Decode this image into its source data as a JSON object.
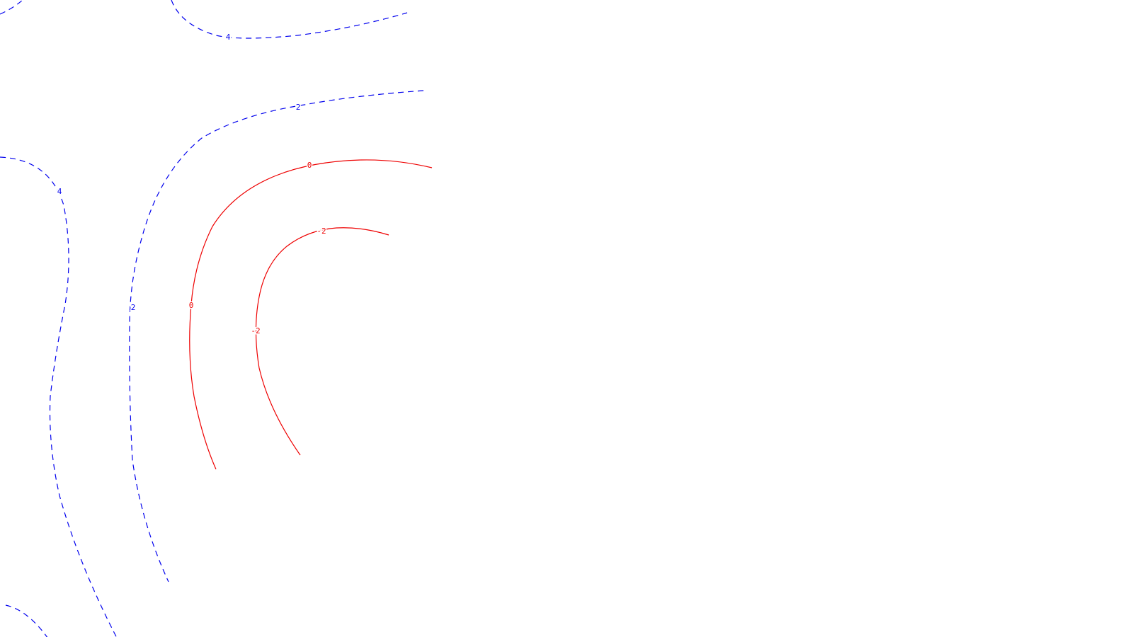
{
  "plot": {
    "background": "#ffffff",
    "positive_color": "#0000ee",
    "negative_color": "#ee0000",
    "labels": {
      "pos4_top": "4",
      "pos2_top": "2",
      "pos4_left": "4",
      "pos2_left": "2",
      "zero_top": "0",
      "zero_left": "0",
      "neg2_top": "-2",
      "neg2_left": "-2"
    }
  }
}
